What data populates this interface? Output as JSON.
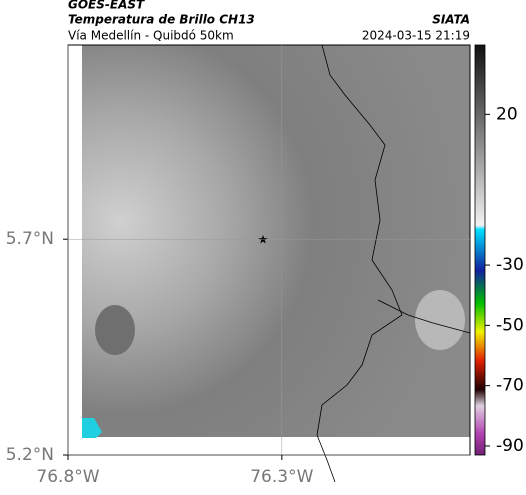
{
  "header": {
    "source": "GOES-EAST",
    "title": "Temperatura de Brillo CH13",
    "subtitle": "Vía Medellín - Quibdó 50km",
    "agency": "SIATA",
    "timestamp": "2024-03-15 21:19"
  },
  "map": {
    "latlim": [
      5.2,
      6.15
    ],
    "lonlim": [
      -76.8,
      -75.86
    ],
    "latticks": [
      {
        "value": 5.2,
        "label": "5.2°N"
      },
      {
        "value": 5.7,
        "label": "5.7°N"
      }
    ],
    "lonticks": [
      {
        "value": -76.8,
        "label": "76.8°W"
      },
      {
        "value": -76.3,
        "label": "76.3°W"
      }
    ]
  },
  "colorbar": {
    "lim": [
      -93,
      43
    ],
    "ticks": [
      20,
      -30,
      -50,
      -70,
      -90
    ]
  }
}
